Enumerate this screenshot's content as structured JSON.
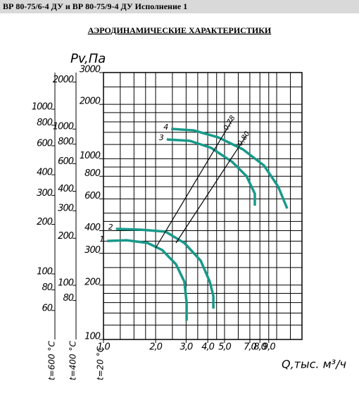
{
  "header": {
    "title": "ВР 80-75/6-4 ДУ и ВР 80-75/9-4 ДУ Исполнение 1"
  },
  "chart_data": {
    "type": "line",
    "title": "АЭРОДИНАМИЧЕСКИЕ ХАРАКТЕРИСТИКИ",
    "ylabel": "Pv,Па",
    "xlabel": "Q,тыс. м³/ч",
    "y_axis_note": "t=20 °C",
    "xscale": "log",
    "yscale": "log",
    "grid": true,
    "xlim": [
      1,
      14
    ],
    "xticks": [
      {
        "value": 1,
        "label": "1,0"
      },
      {
        "value": 2,
        "label": "2,0"
      },
      {
        "value": 3,
        "label": "3,0"
      },
      {
        "value": 4,
        "label": "4,0"
      },
      {
        "value": 5,
        "label": "5,0"
      },
      {
        "value": 7,
        "label": "7,0"
      },
      {
        "value": 8,
        "label": "8,0"
      },
      {
        "value": 9,
        "label": "9,0"
      }
    ],
    "xgrid": [
      1,
      1.25,
      1.5,
      1.75,
      2,
      2.5,
      3,
      3.5,
      4,
      4.5,
      5,
      6,
      7,
      8,
      9,
      10,
      12,
      14
    ],
    "ylim": [
      100,
      3000
    ],
    "yticks": [
      100,
      200,
      300,
      400,
      600,
      800,
      1000,
      2000,
      3000
    ],
    "ygrid": [
      100,
      120,
      140,
      160,
      180,
      200,
      250,
      300,
      350,
      400,
      450,
      500,
      600,
      700,
      800,
      900,
      1000,
      1200,
      1400,
      1600,
      1800,
      2000,
      2500,
      3000
    ],
    "extra_axes": [
      {
        "label": "t=400 °C",
        "ylim": [
          45,
          2300
        ],
        "yticks": [
          80,
          100,
          200,
          300,
          400,
          600,
          800,
          1000,
          2000
        ]
      },
      {
        "label": "t=600 °C",
        "ylim": [
          40,
          1670
        ],
        "yticks": [
          60,
          80,
          100,
          200,
          300,
          400,
          600,
          800,
          1000
        ]
      }
    ],
    "series": [
      {
        "name": "1",
        "color": "#17998a",
        "x": [
          1.05,
          1.36,
          1.8,
          2.18,
          2.62,
          2.93,
          3.02,
          3.02
        ],
        "values": [
          351,
          354,
          342,
          313,
          261,
          209,
          160,
          127
        ]
      },
      {
        "name": "2",
        "color": "#17998a",
        "x": [
          1.18,
          1.64,
          2.28,
          2.93,
          3.64,
          4.11,
          4.31,
          4.31
        ],
        "values": [
          409,
          405,
          395,
          342,
          273,
          209,
          174,
          148
        ]
      },
      {
        "name": "3",
        "color": "#17998a",
        "x": [
          2.32,
          3.16,
          4.19,
          5.55,
          6.69,
          7.48,
          7.48
        ],
        "values": [
          1279,
          1256,
          1148,
          959,
          802,
          641,
          550
        ]
      },
      {
        "name": "4",
        "color": "#17998a",
        "x": [
          2.46,
          3.31,
          4.6,
          6.38,
          8.45,
          10.2,
          11.5
        ],
        "values": [
          1463,
          1436,
          1313,
          1128,
          918,
          701,
          531
        ]
      },
      {
        "name": "0,78",
        "color": "#000000",
        "x": [
          2.0,
          5.55
        ],
        "values": [
          321,
          1644
        ]
      },
      {
        "name": "0,80",
        "color": "#000000",
        "x": [
          2.62,
          6.69
        ],
        "values": [
          342,
          1349
        ]
      }
    ]
  }
}
